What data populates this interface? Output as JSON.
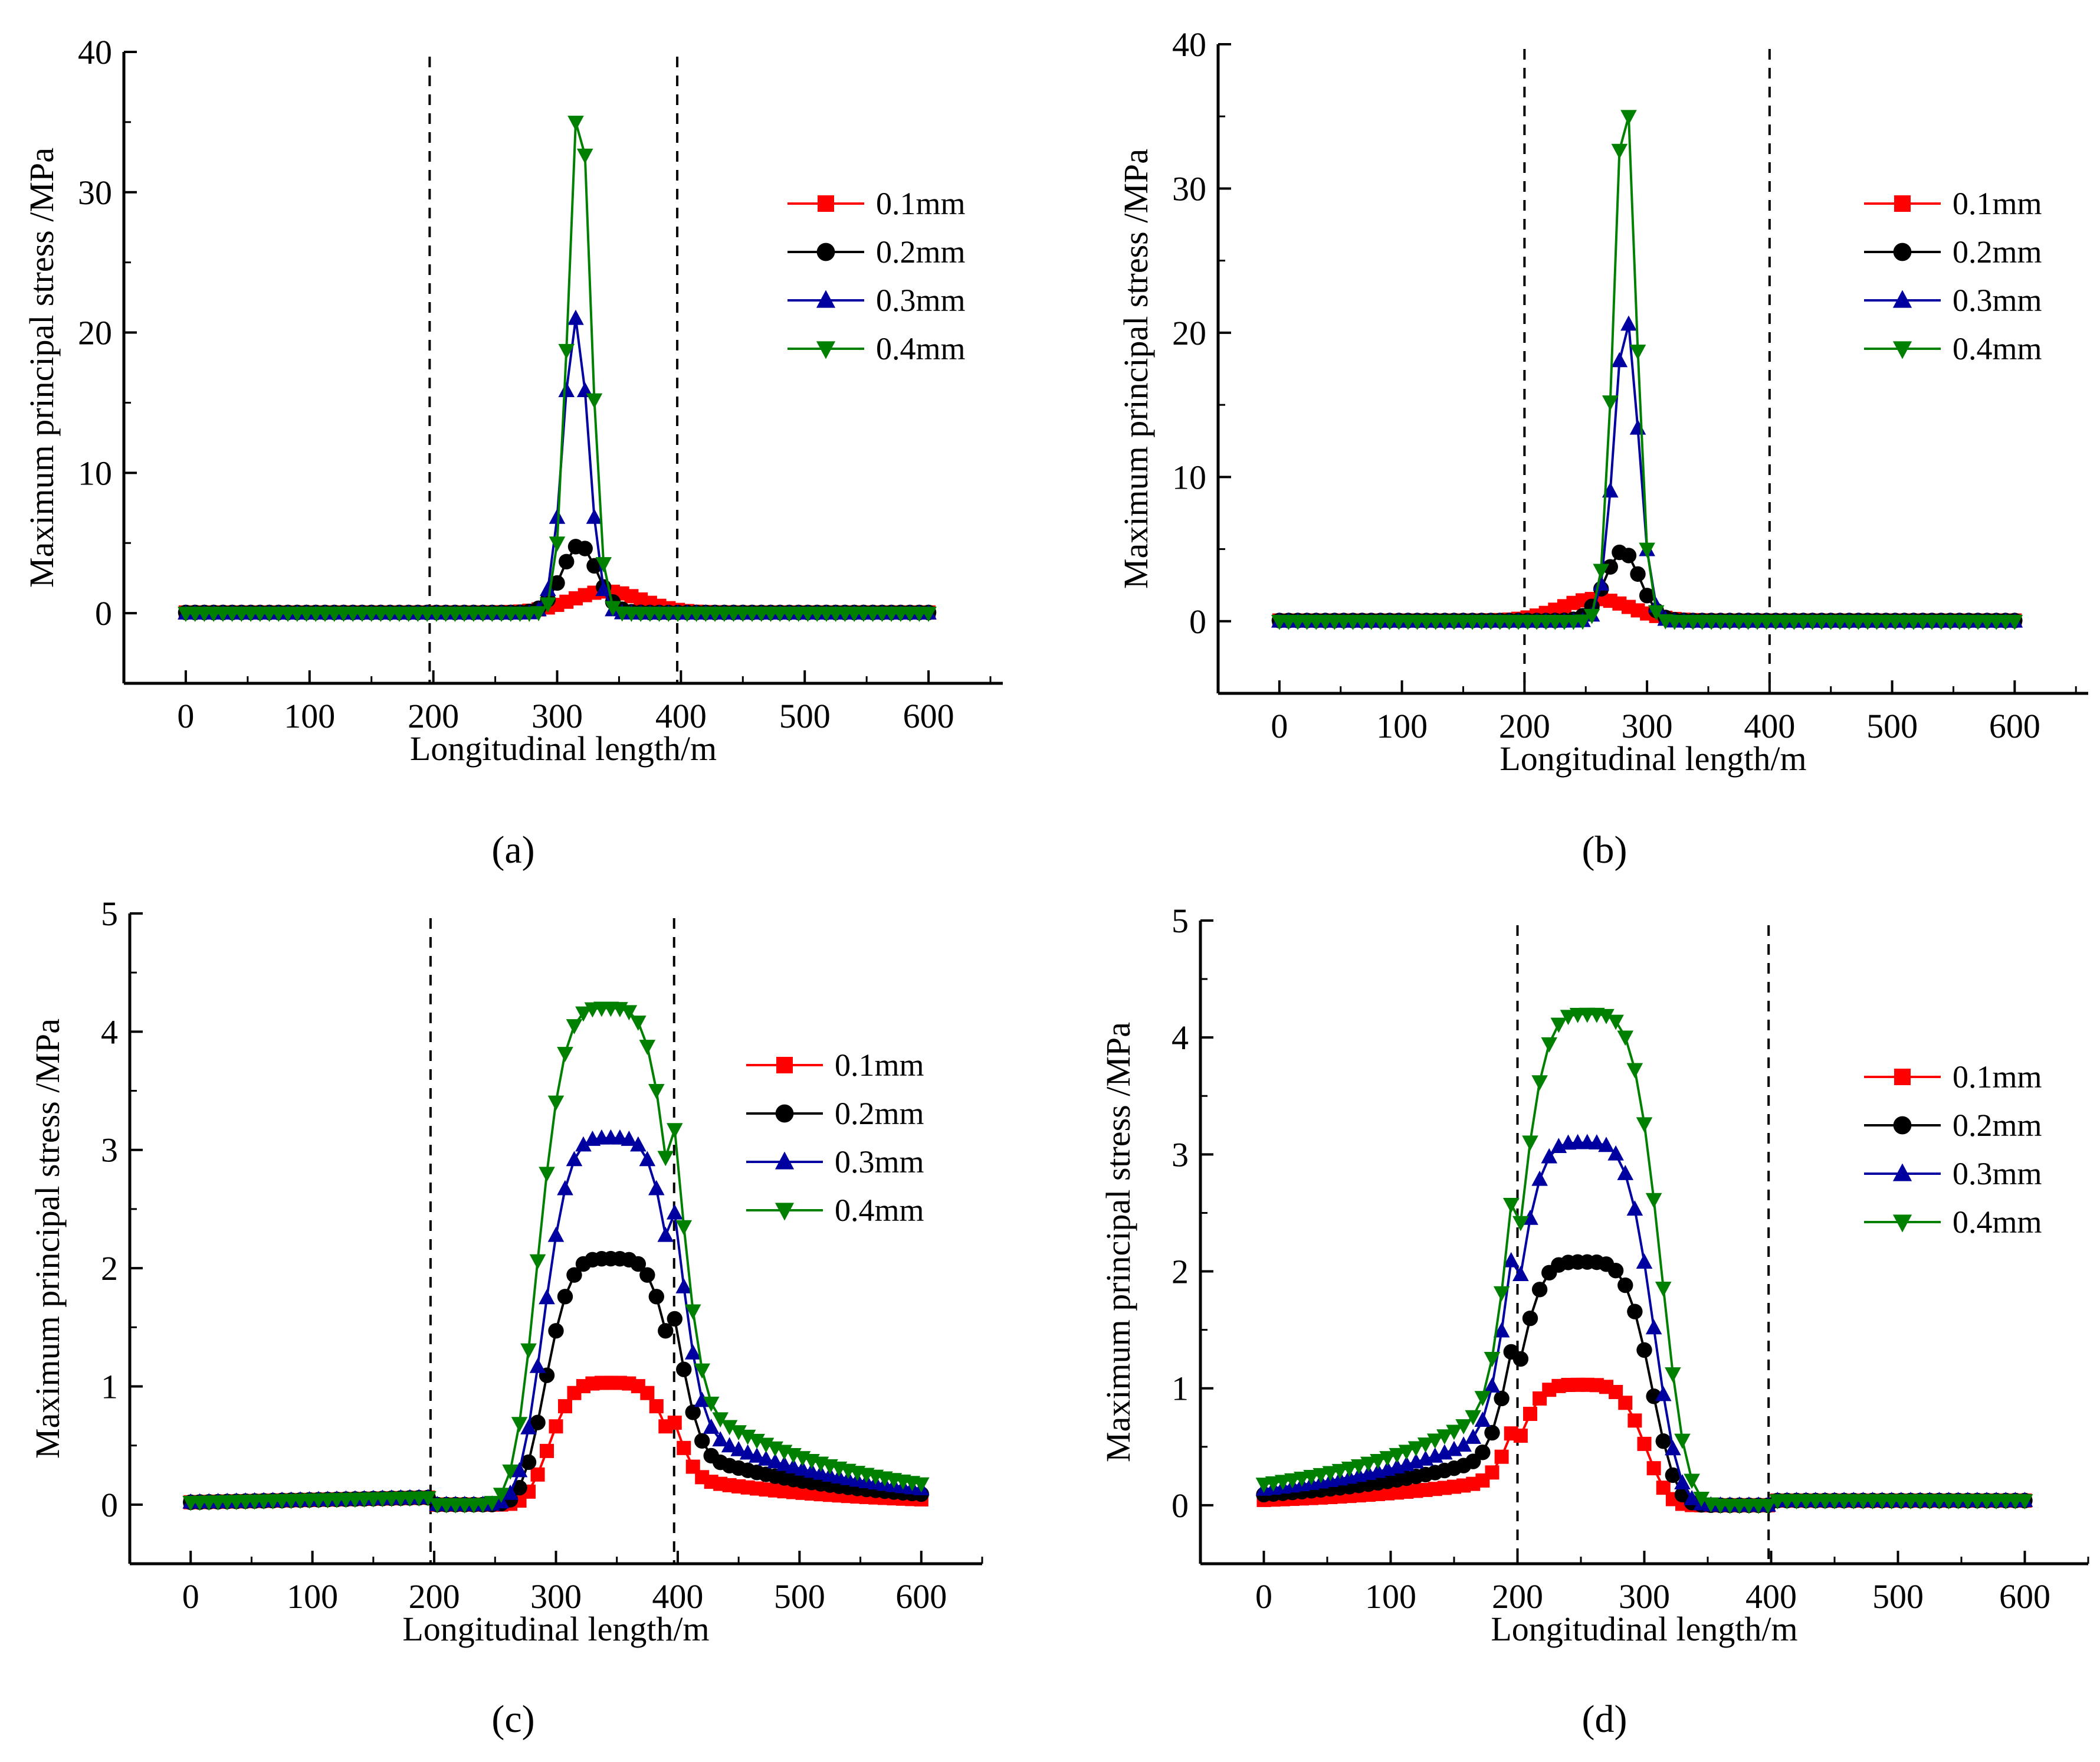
{
  "chart_data": [
    {
      "type": "line",
      "panel_label": "(a)",
      "xlabel": "Longitudinal length/m",
      "ylabel": "Maximum principal stress /MPa",
      "xlim": [
        -50,
        660
      ],
      "ylim": [
        -5,
        40
      ],
      "xticks": [
        0,
        100,
        200,
        300,
        400,
        500,
        600
      ],
      "yticks": [
        0,
        10,
        20,
        30,
        40
      ],
      "dashed_x": [
        197,
        397
      ],
      "center": 335,
      "width": 15,
      "legend_position": "top-right",
      "series": [
        {
          "name": "0.1mm",
          "color": "#ff0000",
          "marker": "square",
          "peak": 1.5,
          "center": 340,
          "sigma": 28
        },
        {
          "name": "0.2mm",
          "color": "#000000",
          "marker": "circle",
          "peak": 4.8,
          "center": 318,
          "sigma": 14
        },
        {
          "name": "0.3mm",
          "color": "#0000a0",
          "marker": "triangle-up",
          "peak": 21,
          "center": 315,
          "sigma": 10
        },
        {
          "name": "0.4mm",
          "color": "#008000",
          "marker": "triangle-down",
          "peak": 37,
          "center": 318,
          "sigma": 9
        }
      ]
    },
    {
      "type": "line",
      "panel_label": "(b)",
      "xlabel": "Longitudinal length/m",
      "ylabel": "Maximum principal stress /MPa",
      "xlim": [
        -50,
        660
      ],
      "ylim": [
        -5,
        40
      ],
      "xticks": [
        0,
        100,
        200,
        300,
        400,
        500,
        600
      ],
      "yticks": [
        0,
        10,
        20,
        30,
        40
      ],
      "dashed_x": [
        200,
        400
      ],
      "legend_position": "top-right",
      "series": [
        {
          "name": "0.1mm",
          "color": "#ff0000",
          "marker": "square",
          "peak": 1.5,
          "center": 258,
          "sigma": 28
        },
        {
          "name": "0.2mm",
          "color": "#000000",
          "marker": "circle",
          "peak": 4.8,
          "center": 280,
          "sigma": 14
        },
        {
          "name": "0.3mm",
          "color": "#0000a0",
          "marker": "triangle-up",
          "peak": 21,
          "center": 283,
          "sigma": 10
        },
        {
          "name": "0.4mm",
          "color": "#008000",
          "marker": "triangle-down",
          "peak": 37,
          "center": 282,
          "sigma": 9
        }
      ]
    },
    {
      "type": "line",
      "panel_label": "(c)",
      "xlabel": "Longitudinal length/m",
      "ylabel": "Maximum principal stress /MPa",
      "xlim": [
        -50,
        650
      ],
      "ylim": [
        -0.5,
        5
      ],
      "xticks": [
        0,
        100,
        200,
        300,
        400,
        500,
        600
      ],
      "yticks": [
        0,
        1,
        2,
        3,
        4,
        5
      ],
      "dashed_x": [
        197,
        397
      ],
      "legend_position": "right",
      "series": [
        {
          "name": "0.1mm",
          "color": "#ff0000",
          "marker": "square",
          "peak": 1.03,
          "center": 345,
          "sigma": 32
        },
        {
          "name": "0.2mm",
          "color": "#000000",
          "marker": "circle",
          "peak": 2.08,
          "center": 345,
          "sigma": 34
        },
        {
          "name": "0.3mm",
          "color": "#0000a0",
          "marker": "triangle-up",
          "peak": 3.1,
          "center": 345,
          "sigma": 35
        },
        {
          "name": "0.4mm",
          "color": "#008000",
          "marker": "triangle-down",
          "peak": 4.2,
          "center": 342,
          "sigma": 36
        }
      ]
    },
    {
      "type": "line",
      "panel_label": "(d)",
      "xlabel": "Longitudinal length/m",
      "ylabel": "Maximum principal stress /MPa",
      "xlim": [
        -50,
        650
      ],
      "ylim": [
        -0.5,
        5
      ],
      "xticks": [
        0,
        100,
        200,
        300,
        400,
        500,
        600
      ],
      "yticks": [
        0,
        1,
        2,
        3,
        4,
        5
      ],
      "dashed_x": [
        200,
        398
      ],
      "legend_position": "right",
      "series": [
        {
          "name": "0.1mm",
          "color": "#ff0000",
          "marker": "square",
          "peak": 1.03,
          "center": 250,
          "sigma": 32
        },
        {
          "name": "0.2mm",
          "color": "#000000",
          "marker": "circle",
          "peak": 2.08,
          "center": 252,
          "sigma": 34
        },
        {
          "name": "0.3mm",
          "color": "#0000a0",
          "marker": "triangle-up",
          "peak": 3.1,
          "center": 252,
          "sigma": 35
        },
        {
          "name": "0.4mm",
          "color": "#008000",
          "marker": "triangle-down",
          "peak": 4.2,
          "center": 256,
          "sigma": 36
        }
      ]
    }
  ]
}
